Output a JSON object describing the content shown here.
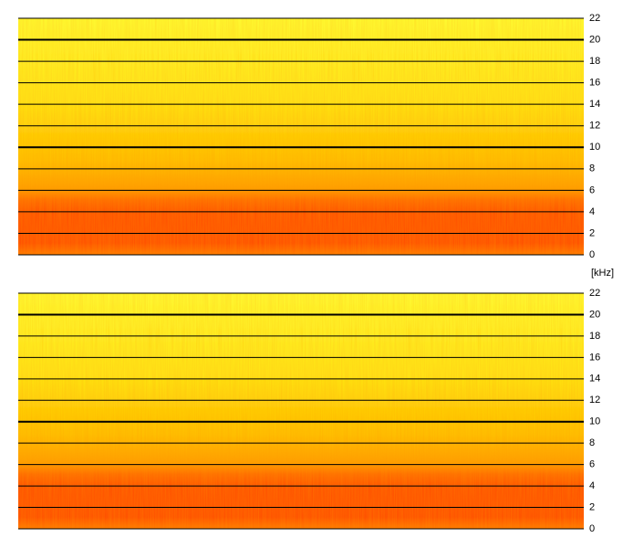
{
  "chart_data": [
    {
      "type": "spectrogram",
      "ylim": [
        0,
        22
      ],
      "yticks": [
        0,
        2,
        4,
        6,
        8,
        10,
        12,
        14,
        16,
        18,
        20,
        22
      ],
      "grid": true,
      "major_grid_every": 10
    },
    {
      "type": "spectrogram",
      "ylabel": "[kHz]",
      "ylim": [
        0,
        22
      ],
      "yticks": [
        0,
        2,
        4,
        6,
        8,
        10,
        12,
        14,
        16,
        18,
        20,
        22
      ],
      "grid": true,
      "major_grid_every": 10
    }
  ]
}
